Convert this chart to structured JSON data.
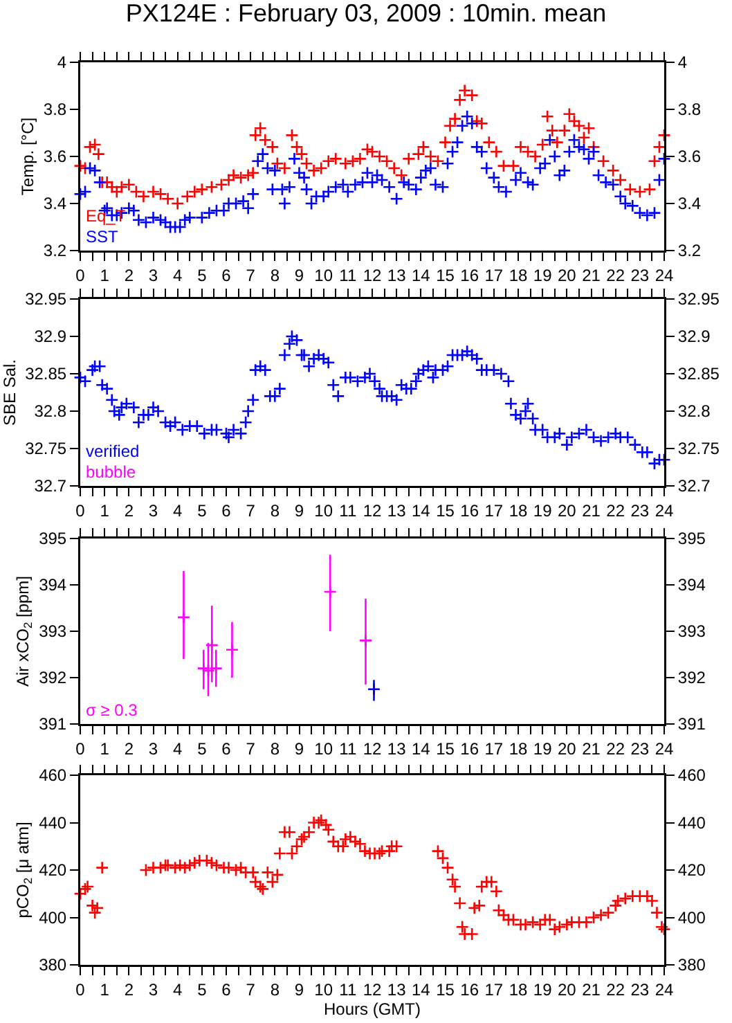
{
  "chart_data": [
    {
      "type": "scatter",
      "title": "PX124E : February 03, 2009 : 10min. mean",
      "ylabel": "Temp. [°C]",
      "marker": "cross",
      "legend": "bottom left",
      "xlim": [
        0,
        24
      ],
      "xticks": [
        0,
        1,
        2,
        3,
        4,
        5,
        6,
        7,
        8,
        9,
        10,
        11,
        12,
        13,
        14,
        15,
        16,
        17,
        18,
        19,
        20,
        21,
        22,
        23,
        24
      ],
      "ylim": [
        3.2,
        4
      ],
      "yticks": [
        3.2,
        3.4,
        3.6,
        3.8,
        4
      ],
      "y2lim": [
        3.2,
        4
      ],
      "y2ticks": [
        3.2,
        3.4,
        3.6,
        3.8,
        4
      ],
      "series": [
        {
          "name": "Eq_T",
          "color": "#ff0000",
          "x": [
            0,
            0.2,
            0.4,
            0.6,
            0.75,
            0.9,
            1.1,
            1.3,
            1.5,
            1.7,
            2.0,
            2.3,
            2.6,
            3.0,
            3.3,
            3.6,
            4.0,
            4.4,
            4.7,
            5.0,
            5.4,
            5.8,
            6.1,
            6.3,
            6.6,
            6.9,
            7.1,
            7.2,
            7.4,
            7.6,
            7.9,
            8.1,
            8.4,
            8.7,
            8.9,
            9.1,
            9.3,
            9.6,
            9.9,
            10.2,
            10.5,
            10.9,
            11.2,
            11.5,
            11.8,
            12.0,
            12.3,
            12.6,
            12.9,
            13.2,
            13.5,
            13.9,
            14.1,
            14.4,
            14.7,
            15.0,
            15.2,
            15.4,
            15.6,
            15.8,
            16.1,
            16.3,
            16.5,
            16.8,
            17.1,
            17.4,
            17.8,
            18.1,
            18.4,
            18.7,
            19.0,
            19.2,
            19.4,
            19.6,
            19.9,
            20.1,
            20.3,
            20.5,
            20.7,
            20.9,
            21.1,
            21.5,
            21.9,
            22.2,
            22.6,
            23.0,
            23.4,
            23.6,
            23.8,
            24.0
          ],
          "values": [
            3.56,
            3.55,
            3.64,
            3.65,
            3.61,
            3.49,
            3.49,
            3.47,
            3.45,
            3.47,
            3.48,
            3.45,
            3.43,
            3.45,
            3.44,
            3.42,
            3.4,
            3.43,
            3.45,
            3.46,
            3.47,
            3.48,
            3.5,
            3.52,
            3.51,
            3.52,
            3.53,
            3.69,
            3.72,
            3.67,
            3.64,
            3.57,
            3.55,
            3.69,
            3.64,
            3.61,
            3.57,
            3.54,
            3.55,
            3.58,
            3.59,
            3.57,
            3.58,
            3.59,
            3.63,
            3.62,
            3.6,
            3.58,
            3.55,
            3.52,
            3.59,
            3.61,
            3.64,
            3.6,
            3.58,
            3.66,
            3.73,
            3.76,
            3.84,
            3.88,
            3.86,
            3.75,
            3.74,
            3.66,
            3.62,
            3.56,
            3.56,
            3.64,
            3.62,
            3.6,
            3.65,
            3.77,
            3.71,
            3.66,
            3.71,
            3.78,
            3.75,
            3.73,
            3.68,
            3.72,
            3.64,
            3.58,
            3.54,
            3.5,
            3.46,
            3.45,
            3.46,
            3.58,
            3.64,
            3.69
          ]
        },
        {
          "name": "SST",
          "color": "#0000ff",
          "x": [
            0,
            0.2,
            0.4,
            0.6,
            0.8,
            1.0,
            1.1,
            1.3,
            1.5,
            1.7,
            2.0,
            2.2,
            2.4,
            2.7,
            3.0,
            3.3,
            3.5,
            3.7,
            3.9,
            4.1,
            4.3,
            4.5,
            5.0,
            5.3,
            5.6,
            5.9,
            6.1,
            6.4,
            6.7,
            6.9,
            7.1,
            7.3,
            7.5,
            7.7,
            7.9,
            8.0,
            8.3,
            8.4,
            8.6,
            8.8,
            9.0,
            9.2,
            9.3,
            9.5,
            9.7,
            10.0,
            10.2,
            10.5,
            10.8,
            11.0,
            11.3,
            11.6,
            11.8,
            12.0,
            12.2,
            12.4,
            12.7,
            13.0,
            13.3,
            13.5,
            13.8,
            14.0,
            14.2,
            14.4,
            14.6,
            14.9,
            15.1,
            15.3,
            15.5,
            15.7,
            15.9,
            16.1,
            16.3,
            16.5,
            16.7,
            17.0,
            17.2,
            17.5,
            17.9,
            18.1,
            18.4,
            18.6,
            18.9,
            19.1,
            19.3,
            19.5,
            19.7,
            19.9,
            20.1,
            20.3,
            20.5,
            20.7,
            20.9,
            21.1,
            21.3,
            21.6,
            21.9,
            22.2,
            22.4,
            22.7,
            23.0,
            23.3,
            23.6,
            23.8,
            24.0
          ],
          "values": [
            3.44,
            3.45,
            3.55,
            3.54,
            3.49,
            3.37,
            3.38,
            3.35,
            3.35,
            3.36,
            3.38,
            3.37,
            3.33,
            3.32,
            3.34,
            3.33,
            3.32,
            3.3,
            3.3,
            3.3,
            3.33,
            3.34,
            3.34,
            3.36,
            3.37,
            3.37,
            3.4,
            3.4,
            3.41,
            3.38,
            3.44,
            3.58,
            3.61,
            3.55,
            3.46,
            3.54,
            3.46,
            3.4,
            3.47,
            3.59,
            3.53,
            3.51,
            3.46,
            3.4,
            3.43,
            3.43,
            3.45,
            3.47,
            3.48,
            3.45,
            3.48,
            3.49,
            3.53,
            3.49,
            3.52,
            3.5,
            3.47,
            3.42,
            3.49,
            3.48,
            3.46,
            3.51,
            3.54,
            3.55,
            3.48,
            3.47,
            3.57,
            3.62,
            3.66,
            3.73,
            3.77,
            3.74,
            3.64,
            3.62,
            3.55,
            3.51,
            3.47,
            3.45,
            3.5,
            3.53,
            3.49,
            3.48,
            3.55,
            3.57,
            3.67,
            3.6,
            3.52,
            3.54,
            3.62,
            3.67,
            3.64,
            3.63,
            3.59,
            3.62,
            3.52,
            3.49,
            3.48,
            3.43,
            3.4,
            3.39,
            3.36,
            3.35,
            3.36,
            3.5,
            3.59
          ]
        }
      ]
    },
    {
      "type": "scatter",
      "ylabel": "SBE Sal.",
      "marker": "cross",
      "legend": "bottom left",
      "annotations": [
        "bubble"
      ],
      "xlim": [
        0,
        24
      ],
      "xticks": [
        0,
        1,
        2,
        3,
        4,
        5,
        6,
        7,
        8,
        9,
        10,
        11,
        12,
        13,
        14,
        15,
        16,
        17,
        18,
        19,
        20,
        21,
        22,
        23,
        24
      ],
      "ylim": [
        32.7,
        32.95
      ],
      "yticks": [
        32.7,
        32.75,
        32.8,
        32.85,
        32.9,
        32.95
      ],
      "y2lim": [
        32.7,
        32.95
      ],
      "y2ticks": [
        32.7,
        32.75,
        32.8,
        32.85,
        32.9,
        32.95
      ],
      "series": [
        {
          "name": "verified",
          "color": "#0000ff",
          "x": [
            0.0,
            0.2,
            0.5,
            0.6,
            0.8,
            0.9,
            1.1,
            1.3,
            1.4,
            1.6,
            1.7,
            1.9,
            2.2,
            2.4,
            2.6,
            2.8,
            3.0,
            3.2,
            3.5,
            3.7,
            3.9,
            4.2,
            4.5,
            4.8,
            5.1,
            5.4,
            5.6,
            6.0,
            6.1,
            6.3,
            6.6,
            6.8,
            6.9,
            7.1,
            7.2,
            7.4,
            7.6,
            7.8,
            8.0,
            8.2,
            8.4,
            8.6,
            8.7,
            8.9,
            9.1,
            9.2,
            9.4,
            9.6,
            9.8,
            10.0,
            10.2,
            10.4,
            10.6,
            10.9,
            11.1,
            11.4,
            11.7,
            11.9,
            12.1,
            12.3,
            12.4,
            12.6,
            12.8,
            13.0,
            13.2,
            13.4,
            13.6,
            13.8,
            13.9,
            14.1,
            14.3,
            14.5,
            14.6,
            14.9,
            15.1,
            15.3,
            15.5,
            15.7,
            15.9,
            16.1,
            16.3,
            16.5,
            16.7,
            17.0,
            17.3,
            17.6,
            17.7,
            17.9,
            18.1,
            18.3,
            18.4,
            18.6,
            18.7,
            19.0,
            19.2,
            19.5,
            19.7,
            20.0,
            20.2,
            20.5,
            20.8,
            21.1,
            21.4,
            21.7,
            22.0,
            22.2,
            22.5,
            22.8,
            23.1,
            23.3,
            23.6,
            23.8,
            24.0
          ],
          "values": [
            32.845,
            32.84,
            32.855,
            32.86,
            32.86,
            32.835,
            32.83,
            32.815,
            32.8,
            32.795,
            32.805,
            32.81,
            32.805,
            32.785,
            32.795,
            32.795,
            32.805,
            32.8,
            32.785,
            32.78,
            32.785,
            32.775,
            32.78,
            32.78,
            32.77,
            32.775,
            32.775,
            32.77,
            32.765,
            32.775,
            32.77,
            32.785,
            32.8,
            32.815,
            32.855,
            32.86,
            32.855,
            32.82,
            32.82,
            32.83,
            32.875,
            32.89,
            32.9,
            32.895,
            32.875,
            32.875,
            32.86,
            32.87,
            32.875,
            32.87,
            32.865,
            32.835,
            32.82,
            32.845,
            32.845,
            32.84,
            32.845,
            32.85,
            32.84,
            32.83,
            32.82,
            32.82,
            32.82,
            32.815,
            32.835,
            32.83,
            32.83,
            32.84,
            32.85,
            32.855,
            32.86,
            32.845,
            32.855,
            32.855,
            32.86,
            32.875,
            32.875,
            32.875,
            32.88,
            32.875,
            32.87,
            32.855,
            32.855,
            32.855,
            32.85,
            32.84,
            32.81,
            32.795,
            32.79,
            32.8,
            32.81,
            32.79,
            32.775,
            32.775,
            32.765,
            32.765,
            32.77,
            32.755,
            32.765,
            32.77,
            32.775,
            32.765,
            32.76,
            32.765,
            32.77,
            32.765,
            32.765,
            32.755,
            32.745,
            32.745,
            32.73,
            32.735,
            32.735
          ]
        }
      ]
    },
    {
      "type": "scatter",
      "ylabel": "Air xCO$_{2}$ [ppm]",
      "marker": "cross",
      "legend": "bottom left",
      "xlim": [
        0,
        24
      ],
      "xticks": [
        0,
        1,
        2,
        3,
        4,
        5,
        6,
        7,
        8,
        9,
        10,
        11,
        12,
        13,
        14,
        15,
        16,
        17,
        18,
        19,
        20,
        21,
        22,
        23,
        24
      ],
      "ylim": [
        391,
        395
      ],
      "yticks": [
        391,
        392,
        393,
        394,
        395
      ],
      "y2lim": [
        391,
        395
      ],
      "y2ticks": [
        391,
        392,
        393,
        394,
        395
      ],
      "series": [
        {
          "name": "σ ≥ 0.3",
          "color": "#ff00ff",
          "x": [
            4.25,
            5.07,
            5.26,
            5.41,
            5.58,
            6.24,
            10.27,
            11.73
          ],
          "values": [
            393.3,
            392.2,
            392.15,
            392.7,
            392.2,
            392.6,
            393.85,
            392.8
          ],
          "errors": [
            [
              392.4,
              394.3
            ],
            [
              391.75,
              392.6
            ],
            [
              391.6,
              392.75
            ],
            [
              391.9,
              393.55
            ],
            [
              391.8,
              392.6
            ],
            [
              392.0,
              393.2
            ],
            [
              393.0,
              394.65
            ],
            [
              391.85,
              393.7
            ]
          ]
        },
        {
          "color": "#0000ff",
          "x": [
            12.07
          ],
          "values": [
            391.75
          ],
          "errors": [
            [
              391.5,
              391.95
            ]
          ]
        }
      ]
    },
    {
      "type": "scatter",
      "ylabel": "pCO$_{2}$ [μ atm]",
      "xlabel": "Hours (GMT)",
      "marker": "cross",
      "xlim": [
        0,
        24
      ],
      "xticks": [
        0,
        1,
        2,
        3,
        4,
        5,
        6,
        7,
        8,
        9,
        10,
        11,
        12,
        13,
        14,
        15,
        16,
        17,
        18,
        19,
        20,
        21,
        22,
        23,
        24
      ],
      "ylim": [
        380,
        460
      ],
      "yticks": [
        380,
        400,
        420,
        440,
        460
      ],
      "y2lim": [
        380,
        460
      ],
      "y2ticks": [
        380,
        400,
        420,
        440,
        460
      ],
      "series": [
        {
          "color": "#ff0000",
          "x": [
            0.0,
            0.2,
            0.3,
            0.5,
            0.6,
            0.7,
            0.9,
            2.7,
            3.0,
            3.3,
            3.5,
            3.6,
            3.9,
            4.1,
            4.3,
            4.5,
            4.7,
            4.9,
            5.2,
            5.4,
            5.6,
            5.9,
            6.1,
            6.4,
            6.6,
            6.8,
            7.1,
            7.2,
            7.4,
            7.5,
            7.7,
            7.9,
            8.1,
            8.2,
            8.4,
            8.6,
            8.7,
            8.9,
            9.1,
            9.2,
            9.4,
            9.6,
            9.8,
            9.9,
            10.1,
            10.2,
            10.4,
            10.6,
            10.8,
            10.9,
            11.1,
            11.3,
            11.5,
            11.7,
            11.9,
            12.1,
            12.3,
            12.4,
            12.7,
            12.8,
            13.0,
            14.7,
            14.9,
            15.1,
            15.3,
            15.4,
            15.6,
            15.7,
            15.8,
            16.1,
            16.2,
            16.4,
            16.5,
            16.7,
            16.9,
            17.1,
            17.2,
            17.4,
            17.6,
            17.8,
            18.1,
            18.3,
            18.6,
            18.9,
            19.1,
            19.3,
            19.5,
            19.7,
            20.0,
            20.2,
            20.5,
            20.8,
            21.1,
            21.4,
            21.7,
            22.0,
            22.1,
            22.4,
            22.7,
            23.0,
            23.3,
            23.5,
            23.7,
            23.9,
            24.0
          ],
          "values": [
            410,
            412,
            413,
            405,
            402,
            404,
            421,
            420,
            421,
            421,
            422,
            422,
            421,
            422,
            421,
            422,
            423,
            424,
            424,
            423,
            422,
            421,
            421,
            420,
            421,
            419,
            419,
            415,
            413,
            412,
            419,
            415,
            418,
            427,
            436,
            436,
            427,
            430,
            433,
            434,
            436,
            440,
            440,
            441,
            439,
            437,
            432,
            430,
            430,
            433,
            434,
            432,
            431,
            428,
            427,
            427,
            427,
            428,
            428,
            430,
            430,
            428,
            425,
            421,
            416,
            413,
            406,
            396,
            393,
            393,
            404,
            405,
            413,
            415,
            415,
            411,
            403,
            401,
            399,
            399,
            397,
            397,
            398,
            397,
            399,
            399,
            395,
            396,
            397,
            398,
            398,
            398,
            400,
            401,
            402,
            405,
            407,
            408,
            409,
            409,
            409,
            407,
            402,
            396,
            395
          ]
        }
      ]
    }
  ]
}
